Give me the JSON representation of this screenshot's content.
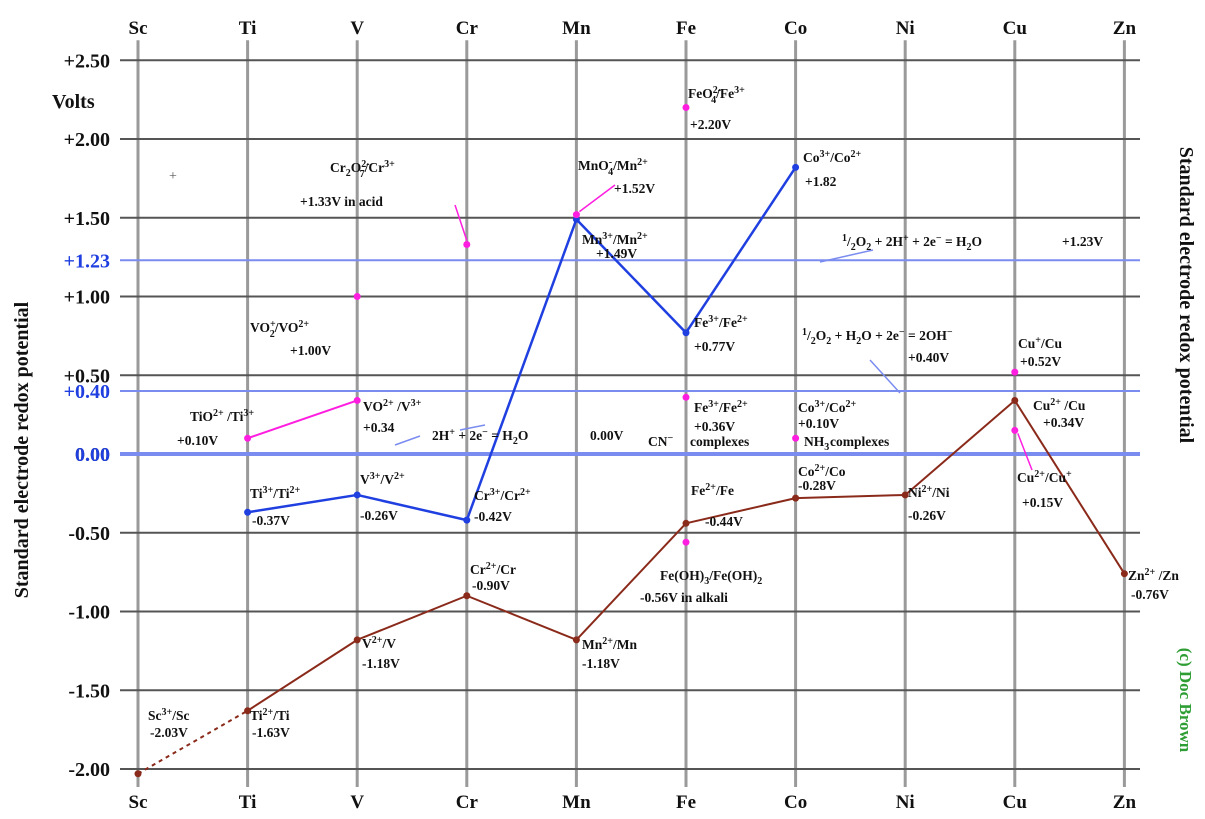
{
  "chart_data": {
    "type": "line",
    "title": "",
    "xlabel": "",
    "ylabel": "Standard electrode redox potential",
    "ylabel_right": "Standard electrode redox potential",
    "y_unit_label": "Volts",
    "credit": "(c) Doc Brown",
    "categories": [
      "Sc",
      "Ti",
      "V",
      "Cr",
      "Mn",
      "Fe",
      "Co",
      "Ni",
      "Cu",
      "Zn"
    ],
    "ylim": [
      -2.0,
      2.5
    ],
    "yticks": [
      {
        "value": 2.5,
        "label": "+2.50"
      },
      {
        "value": 2.0,
        "label": "+2.00"
      },
      {
        "value": 1.5,
        "label": "+1.50"
      },
      {
        "value": 1.0,
        "label": "+1.00"
      },
      {
        "value": 0.5,
        "label": "+0.50"
      },
      {
        "value": 0.0,
        "label": "0.00"
      },
      {
        "value": -0.5,
        "label": "-0.50"
      },
      {
        "value": -1.0,
        "label": "-1.00"
      },
      {
        "value": -1.5,
        "label": "-1.50"
      },
      {
        "value": -2.0,
        "label": "-2.00"
      }
    ],
    "ref_lines": [
      {
        "value": 1.23,
        "label": "+1.23"
      },
      {
        "value": 0.4,
        "label": "+0.40"
      },
      {
        "value": 0.0,
        "label": ""
      }
    ],
    "grid": true,
    "colors": {
      "blue": "#1f3fe0",
      "magenta": "#ff1ee0",
      "brown": "#8a2a1a",
      "ref": "#7b8cf0",
      "grid": "#555555",
      "vgrid": "#9a9a9a",
      "credit": "#2e9e34"
    },
    "series": [
      {
        "points": [
          [
            "Sc",
            -2.03
          ],
          [
            "Ti",
            -1.63
          ],
          [
            "V",
            -1.18
          ],
          [
            "Cr",
            -0.9
          ],
          [
            "Mn",
            -1.18
          ],
          [
            "Fe",
            -0.44
          ],
          [
            "Co",
            -0.28
          ],
          [
            "Ni",
            -0.26
          ],
          [
            "Cu",
            0.34
          ],
          [
            "Zn",
            -0.76
          ]
        ],
        "color": "brown",
        "dashed_first_segment": true
      },
      {
        "points": [
          [
            "Ti",
            -0.37
          ],
          [
            "V",
            -0.26
          ],
          [
            "Cr",
            -0.42
          ],
          [
            "Mn",
            1.49
          ],
          [
            "Fe",
            0.77
          ],
          [
            "Co",
            1.82
          ]
        ],
        "color": "blue"
      },
      {
        "points": [
          [
            "Ti",
            0.1
          ],
          [
            "V",
            0.34
          ]
        ],
        "color": "magenta"
      }
    ],
    "isolated_points": [
      {
        "x": "V",
        "y": 1.0,
        "color": "magenta"
      },
      {
        "x": "Cr",
        "y": 1.33,
        "color": "magenta"
      },
      {
        "x": "Mn",
        "y": 1.52,
        "color": "magenta"
      },
      {
        "x": "Fe",
        "y": 2.2,
        "color": "magenta"
      },
      {
        "x": "Fe",
        "y": 0.36,
        "color": "magenta"
      },
      {
        "x": "Fe",
        "y": -0.56,
        "color": "magenta"
      },
      {
        "x": "Co",
        "y": 0.1,
        "color": "magenta"
      },
      {
        "x": "Cu",
        "y": 0.52,
        "color": "magenta"
      },
      {
        "x": "Cu",
        "y": 0.15,
        "color": "magenta"
      }
    ],
    "annotations": [
      "Sc3+/Sc -2.03V",
      "Ti2+/Ti -1.63V",
      "V2+/V -1.18V",
      "Cr2+/Cr -0.90V",
      "Mn2+/Mn -1.18V",
      "Fe2+/Fe -0.44V",
      "Co2+/Co -0.28V",
      "Ni2+/Ni -0.26V",
      "Cu2+/Cu +0.34V",
      "Zn2+/Zn -0.76V",
      "Ti3+/Ti2+ -0.37V",
      "V3+/V2+ -0.26V",
      "Cr3+/Cr2+ -0.42V",
      "Mn3+/Mn2+ +1.49V",
      "Fe3+/Fe2+ +0.77V",
      "Co3+/Co2+ +1.82",
      "TiO2+/Ti3+ +0.10V",
      "VO2+/V3+ +0.34",
      "VO2+/VO2+ +1.00V",
      "Cr2O72-/Cr3+ +1.33V in acid",
      "MnO4-/Mn2+ +1.52V",
      "FeO42-/Fe3+ +2.20V",
      "Fe3+/Fe2+ +0.36V CN- complexes",
      "Co3+/Co2+ +0.10V NH3 complexes",
      "Fe(OH)3/Fe(OH)2 -0.56V in alkali",
      "Cu+/Cu +0.52V",
      "Cu2+/Cu+ +0.15V",
      "1/2O2 + 2H+ + 2e- = H2O +1.23V",
      "1/2O2 + H2O + 2e- = 2OH- +0.40V",
      "2H+ + 2e- = H2O 0.00V"
    ]
  },
  "text": {
    "volts": "Volts",
    "ylabel": "Standard electrode redox potential",
    "ylabel_right": "Standard electrode redox potential",
    "credit": "(c) Doc Brown"
  },
  "labels": {
    "sc_sc": {
      "sup": "3+",
      "main": "Sc",
      "tail": "/Sc",
      "value": "-2.03V"
    },
    "ti2": {
      "value": "-1.63V"
    },
    "v2": {
      "value": "-1.18V"
    },
    "cr2": {
      "value": "-0.90V"
    },
    "mn2": {
      "value": "-1.18V"
    },
    "fe2": {
      "value": "-0.44V"
    },
    "co2": {
      "value": "-0.28V"
    },
    "ni2": {
      "value": "-0.26V"
    },
    "cu2": {
      "value": "+0.34V"
    },
    "zn2": {
      "value": "-0.76V"
    },
    "ti3": {
      "value": "-0.37V"
    },
    "v3": {
      "value": "-0.26V"
    },
    "cr3": {
      "value": "-0.42V"
    },
    "mn3": {
      "value": "+1.49V"
    },
    "fe3": {
      "value": "+0.77V"
    },
    "co3": {
      "value": "+1.82"
    },
    "tio": {
      "value": "+0.10V"
    },
    "vo": {
      "value": "+0.34"
    },
    "vo2": {
      "value": "+1.00V"
    },
    "cr2o7": {
      "value": "+1.33V in acid"
    },
    "mno4": {
      "value": "+1.52V"
    },
    "feo4": {
      "value": "+2.20V"
    },
    "fecn": {
      "value": "+0.36V",
      "note": "complexes"
    },
    "conh": {
      "value": "+0.10V",
      "note": "complexes"
    },
    "feoh": {
      "value": "-0.56V in alkali"
    },
    "cuplus": {
      "value": "+0.52V"
    },
    "cu2cu": {
      "value": "+0.15V"
    },
    "o2acid": {
      "value": "+1.23V"
    },
    "o2alk": {
      "value": "+0.40V"
    },
    "h2": {
      "value": "0.00V"
    }
  }
}
